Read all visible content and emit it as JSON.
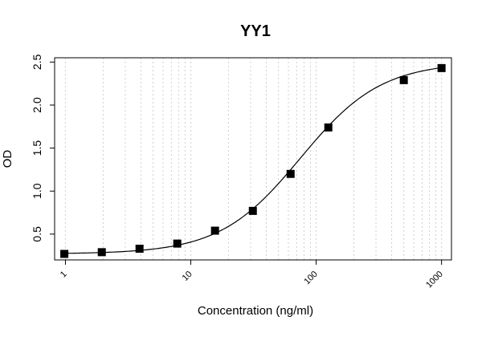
{
  "chart_data": {
    "type": "scatter",
    "title": "YY1",
    "xlabel": "Concentration (ng/ml)",
    "ylabel": "OD",
    "x_scale": "log10",
    "xlim": [
      0.82,
      1200
    ],
    "ylim": [
      0.2,
      2.55
    ],
    "x_ticks": [
      1,
      10,
      100,
      1000
    ],
    "x_tick_labels": [
      "1",
      "10",
      "100",
      "1000"
    ],
    "y_ticks": [
      0.5,
      1.0,
      1.5,
      2.0,
      2.5
    ],
    "y_tick_labels": [
      "0.5",
      "1.0",
      "1.5",
      "2.0",
      "2.5"
    ],
    "grid": "vertical dotted gridlines at log minor positions",
    "legend": "none",
    "series": [
      {
        "marker": "square",
        "color": "#000000",
        "points": [
          {
            "x": 0.98,
            "y": 0.27
          },
          {
            "x": 1.95,
            "y": 0.29
          },
          {
            "x": 3.9,
            "y": 0.33
          },
          {
            "x": 7.8,
            "y": 0.39
          },
          {
            "x": 15.6,
            "y": 0.54
          },
          {
            "x": 31.25,
            "y": 0.77
          },
          {
            "x": 62.5,
            "y": 1.2
          },
          {
            "x": 125,
            "y": 1.74
          },
          {
            "x": 500,
            "y": 2.29
          },
          {
            "x": 1000,
            "y": 2.43
          }
        ]
      }
    ],
    "fit_curve": {
      "type": "4PL",
      "bottom": 0.27,
      "top": 2.5,
      "ec50": 75,
      "hill": 1.35,
      "color": "#000000"
    }
  }
}
